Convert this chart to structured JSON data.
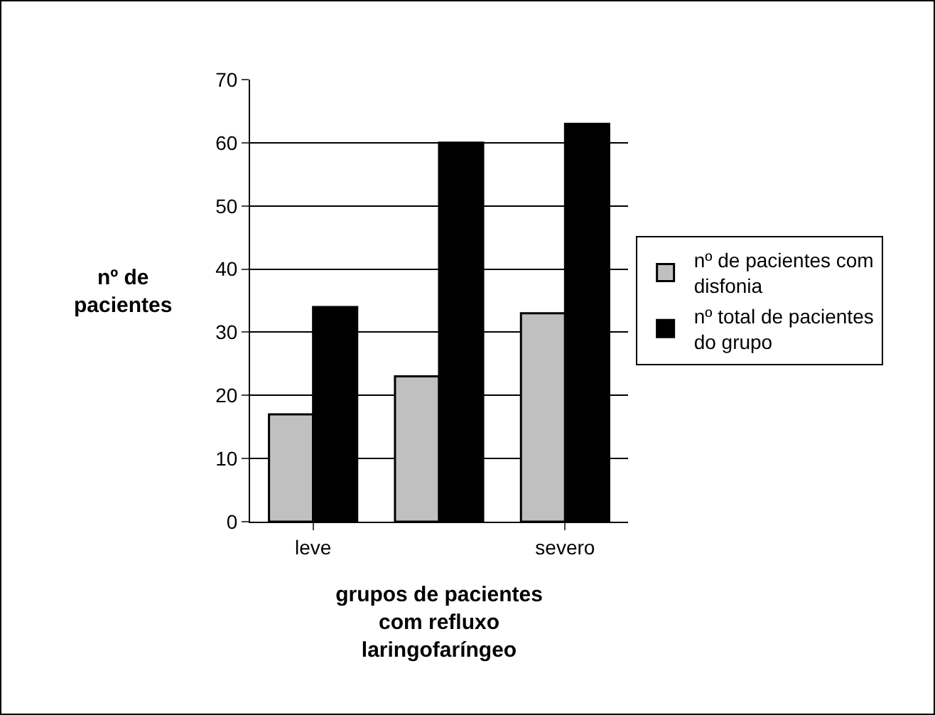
{
  "chart_data": {
    "type": "bar",
    "xlabel": "grupos de pacientes\ncom refluxo\nlaringofaríngeo",
    "ylabel": "nº de\npacientes",
    "categories": [
      "leve",
      null,
      "severo"
    ],
    "series": [
      {
        "name": "nº de pacientes com\ndisfonia",
        "color": "#c0c0c0",
        "values": [
          17,
          23,
          33
        ]
      },
      {
        "name": "nº total de pacientes\ndo grupo",
        "color": "#000000",
        "values": [
          34,
          60,
          63
        ]
      }
    ],
    "ylim": [
      0,
      70
    ],
    "yticks": [
      0,
      10,
      20,
      30,
      40,
      50,
      60,
      70
    ],
    "grid": "y",
    "legend": "right"
  }
}
